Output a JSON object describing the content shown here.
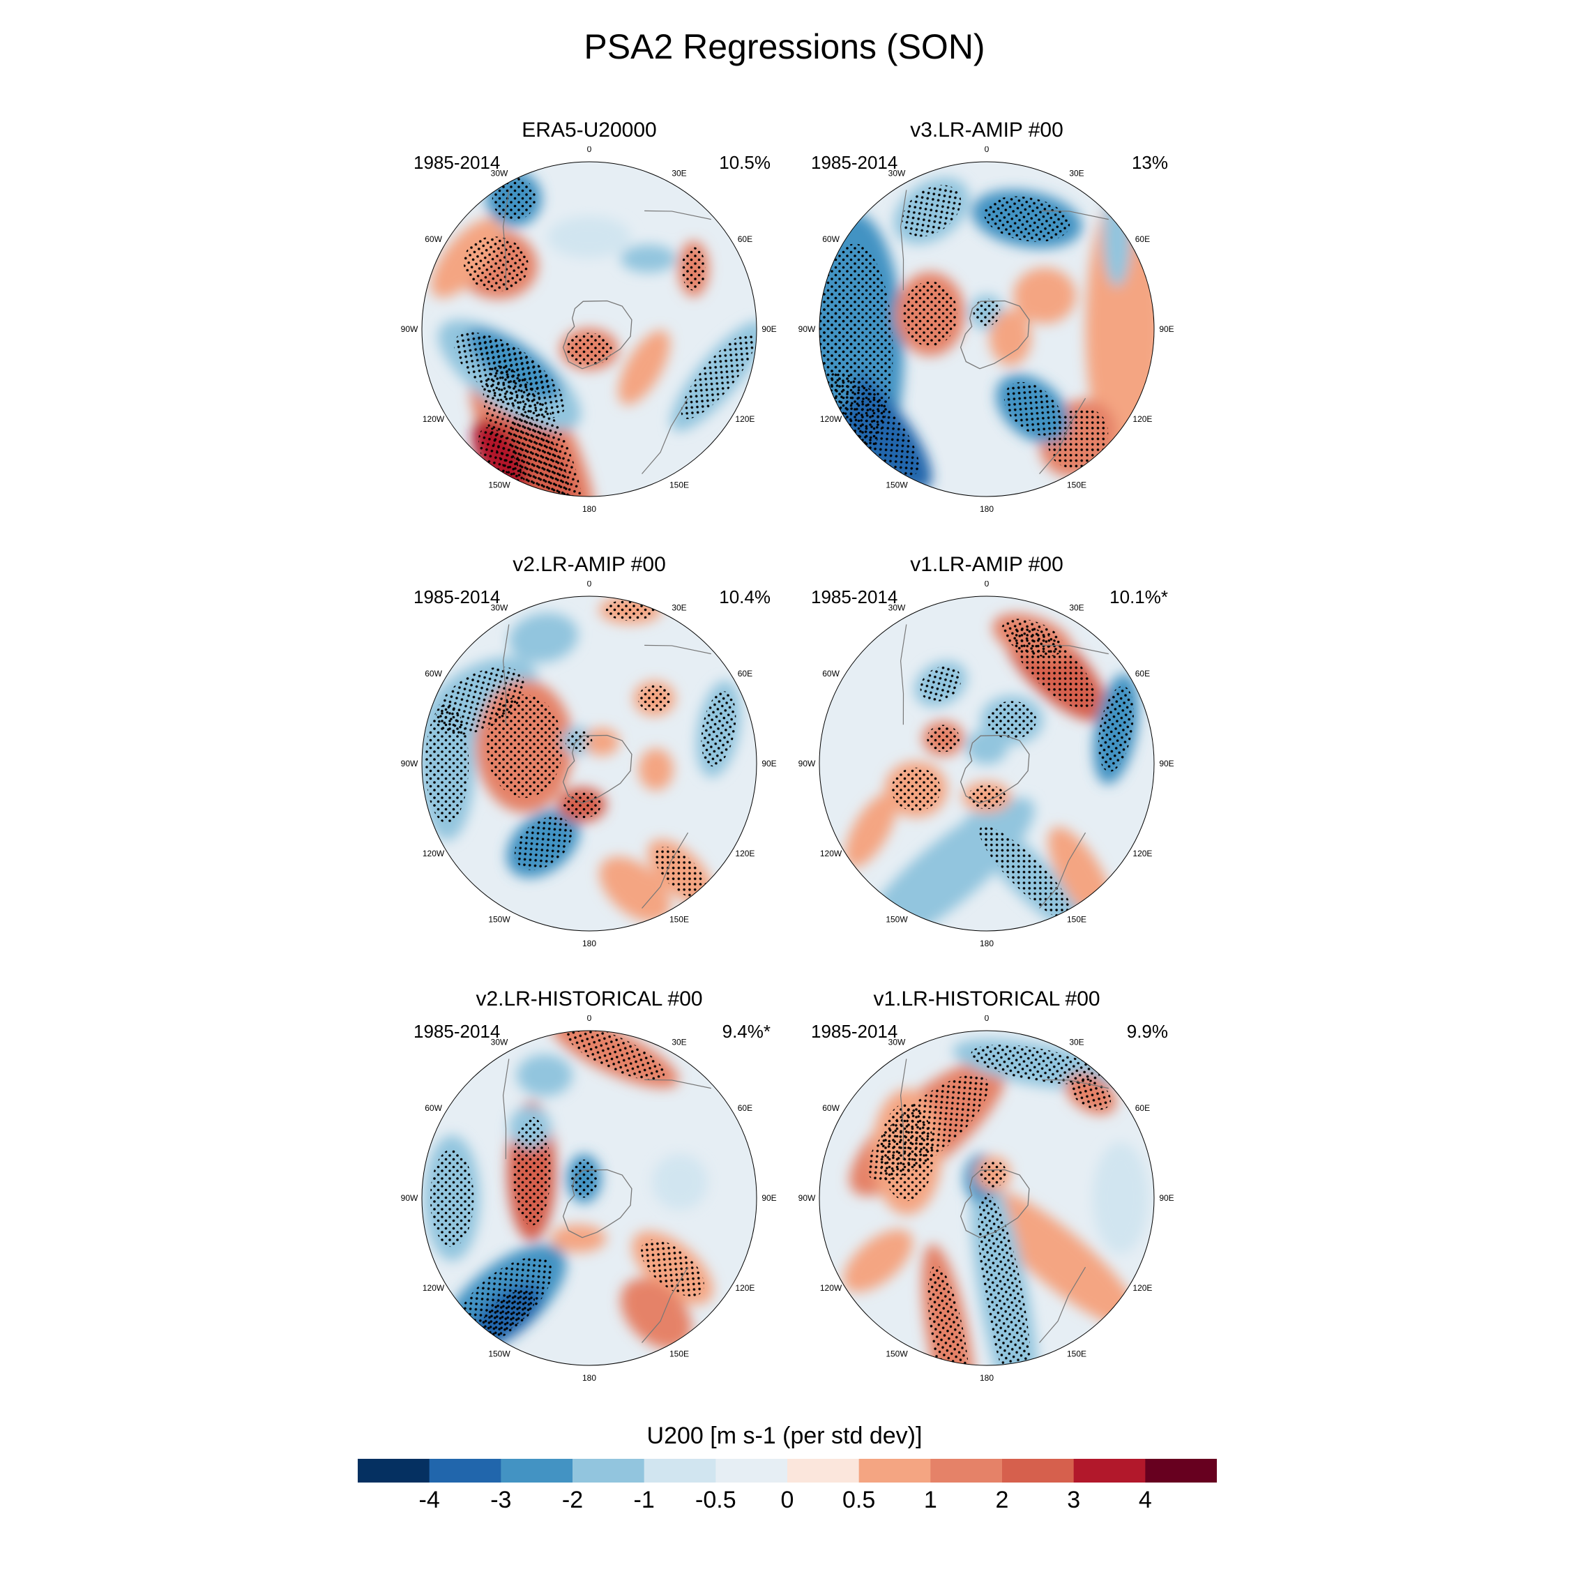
{
  "title": "PSA2 Regressions (SON)",
  "colorbar": {
    "title": "U200 [m s-1 (per std dev)]",
    "levels": [
      "-4",
      "-3",
      "-2",
      "-1",
      "-0.5",
      "0",
      "0.5",
      "1",
      "2",
      "3",
      "4"
    ],
    "colors": [
      "#053061",
      "#2166ac",
      "#4393c3",
      "#92c5de",
      "#d1e5f0",
      "#e6eef4",
      "#fbe6dc",
      "#f4a582",
      "#e58268",
      "#d6604d",
      "#b2182b",
      "#67001f"
    ]
  },
  "longitude_labels": [
    "0",
    "30E",
    "60E",
    "90E",
    "120E",
    "150E",
    "180",
    "150W",
    "120W",
    "90W",
    "60W",
    "30W"
  ],
  "panels": [
    {
      "title": "ERA5-U20000",
      "years": "1985-2014",
      "pct": "10.5%"
    },
    {
      "title": "v3.LR-AMIP  #00",
      "years": "1985-2014",
      "pct": "13%"
    },
    {
      "title": "v2.LR-AMIP  #00",
      "years": "1985-2014",
      "pct": "10.4%"
    },
    {
      "title": "v1.LR-AMIP  #00",
      "years": "1985-2014",
      "pct": "10.1%*"
    },
    {
      "title": "v2.LR-HISTORICAL  #00",
      "years": "1985-2014",
      "pct": "9.4%*"
    },
    {
      "title": "v1.LR-HISTORICAL  #00",
      "years": "1985-2014",
      "pct": "9.9%"
    }
  ]
}
